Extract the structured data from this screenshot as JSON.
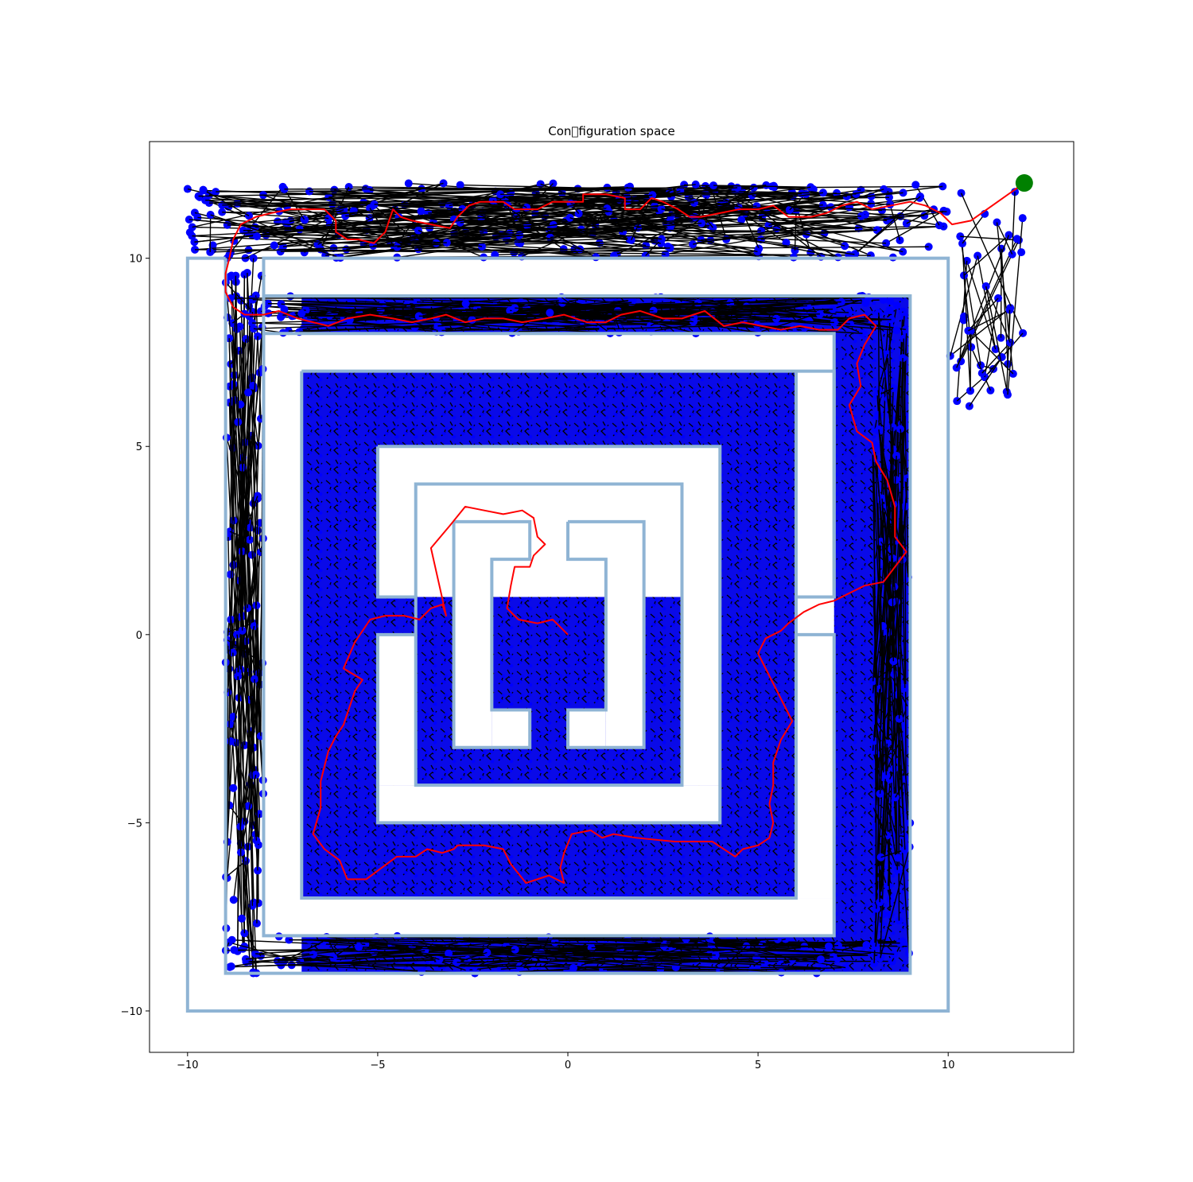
{
  "chart_data": {
    "type": "scatter",
    "title": "Con\u0000figuration space",
    "xlabel": "",
    "ylabel": "",
    "xlim": [
      -11.0,
      13.3
    ],
    "ylim": [
      -11.1,
      13.1
    ],
    "xticks": [
      -10,
      -5,
      0,
      5,
      10
    ],
    "yticks": [
      -10,
      -5,
      0,
      5,
      10
    ],
    "xtick_labels": [
      "−10",
      "−5",
      "0",
      "5",
      "10"
    ],
    "ytick_labels": [
      "−10",
      "−5",
      "0",
      "5",
      "10"
    ],
    "grid": false,
    "legend": "none",
    "colors": {
      "walls": "#8fb4d4",
      "nodes": "#0000ff",
      "edges": "#000000",
      "path": "#ff0000",
      "goal": "#008000"
    },
    "start": [
      0,
      0
    ],
    "goal": [
      12,
      12
    ],
    "walls": [
      [
        [
          -9,
          10
        ],
        [
          -10,
          10
        ],
        [
          -10,
          -10
        ],
        [
          10,
          -10
        ],
        [
          10,
          10
        ],
        [
          -8,
          10
        ],
        [
          -8,
          -8
        ],
        [
          7,
          -8
        ],
        [
          7,
          0
        ],
        [
          6,
          0
        ],
        [
          6,
          1
        ],
        [
          7,
          1
        ],
        [
          7,
          8
        ],
        [
          -8,
          8
        ]
      ],
      [
        [
          -9,
          10
        ],
        [
          -9,
          -9
        ],
        [
          9,
          -9
        ],
        [
          9,
          9
        ],
        [
          -8,
          9
        ]
      ],
      [
        [
          -7,
          7
        ],
        [
          7,
          7
        ],
        [
          7,
          1
        ],
        [
          6,
          1
        ],
        [
          6,
          7
        ]
      ],
      [
        [
          -7,
          7
        ],
        [
          -7,
          -7
        ],
        [
          6,
          -7
        ],
        [
          6,
          0
        ]
      ],
      [
        [
          -5,
          5
        ],
        [
          4,
          5
        ],
        [
          4,
          -5
        ],
        [
          -5,
          -5
        ],
        [
          -5,
          0
        ],
        [
          -4,
          0
        ],
        [
          -4,
          1
        ],
        [
          -5,
          1
        ],
        [
          -5,
          5
        ]
      ],
      [
        [
          -4,
          1
        ],
        [
          -4,
          4
        ],
        [
          3,
          4
        ],
        [
          3,
          -4
        ],
        [
          -4,
          -4
        ],
        [
          -4,
          0
        ]
      ],
      [
        [
          -3,
          3
        ],
        [
          -1,
          3
        ],
        [
          -1,
          2
        ],
        [
          -2,
          2
        ],
        [
          -2,
          -2
        ],
        [
          -1,
          -2
        ],
        [
          -1,
          -3
        ],
        [
          -3,
          -3
        ],
        [
          -3,
          3
        ]
      ],
      [
        [
          0,
          3
        ],
        [
          2,
          3
        ],
        [
          2,
          -3
        ],
        [
          0,
          -3
        ],
        [
          0,
          -2
        ],
        [
          1,
          -2
        ],
        [
          1,
          2
        ],
        [
          0,
          2
        ],
        [
          0,
          3
        ]
      ]
    ],
    "explored_regions": [
      [
        -7,
        9,
        -9,
        9
      ],
      [
        -9,
        -7,
        -9,
        10
      ],
      [
        -10,
        10,
        10,
        12
      ],
      [
        10,
        12,
        6,
        12
      ]
    ],
    "wall_exclusion": [
      [
        [
          -10,
          -9,
          -10,
          10
        ],
        [
          9,
          10,
          -10,
          10
        ],
        [
          -10,
          10,
          -10,
          -9
        ],
        [
          -8,
          -7,
          -8,
          8
        ],
        [
          -8,
          7,
          -8,
          -7
        ],
        [
          -8,
          7,
          7,
          8
        ],
        [
          -10,
          10,
          -11.1,
          -10
        ],
        [
          10,
          13.3,
          -11.1,
          6
        ],
        [
          -11.0,
          -10,
          -11.1,
          13.1
        ]
      ],
      [
        [
          -5,
          4,
          -5,
          5
        ]
      ],
      [
        [
          -3,
          2,
          -3,
          3
        ]
      ]
    ],
    "inner_blocks": [
      [
        -7,
        6,
        -7,
        7
      ],
      [
        -4,
        3,
        -4,
        4
      ],
      [
        -2,
        1,
        -2,
        2
      ]
    ],
    "solution_path": [
      [
        12,
        12
      ],
      [
        11.3,
        11.5
      ],
      [
        10.6,
        11.0
      ],
      [
        10.1,
        10.9
      ],
      [
        9.8,
        11.2
      ],
      [
        9.4,
        11.4
      ],
      [
        9.0,
        11.5
      ],
      [
        8.5,
        11.4
      ],
      [
        8.0,
        11.3
      ],
      [
        7.6,
        11.5
      ],
      [
        7.2,
        11.4
      ],
      [
        6.8,
        11.2
      ],
      [
        6.4,
        11.1
      ],
      [
        5.8,
        11.1
      ],
      [
        5.4,
        11.4
      ],
      [
        5.0,
        11.3
      ],
      [
        4.5,
        11.3
      ],
      [
        4.0,
        11.2
      ],
      [
        3.5,
        11.1
      ],
      [
        3.2,
        11.1
      ],
      [
        2.9,
        11.3
      ],
      [
        2.5,
        11.5
      ],
      [
        2.2,
        11.6
      ],
      [
        1.9,
        11.3
      ],
      [
        1.5,
        11.3
      ],
      [
        1.5,
        11.6
      ],
      [
        1.0,
        11.7
      ],
      [
        0.4,
        11.7
      ],
      [
        0.4,
        11.5
      ],
      [
        0.0,
        11.5
      ],
      [
        -0.4,
        11.5
      ],
      [
        -0.8,
        11.3
      ],
      [
        -1.1,
        11.3
      ],
      [
        -1.4,
        11.3
      ],
      [
        -1.7,
        11.5
      ],
      [
        -2.3,
        11.5
      ],
      [
        -2.6,
        11.4
      ],
      [
        -2.9,
        11.1
      ],
      [
        -3.1,
        10.8
      ],
      [
        -3.6,
        10.9
      ],
      [
        -4.1,
        11.0
      ],
      [
        -4.4,
        11.1
      ],
      [
        -4.6,
        11.3
      ],
      [
        -4.8,
        10.7
      ],
      [
        -5.1,
        10.4
      ],
      [
        -5.5,
        10.5
      ],
      [
        -5.8,
        10.5
      ],
      [
        -6.1,
        10.7
      ],
      [
        -6.1,
        11.0
      ],
      [
        -6.4,
        11.3
      ],
      [
        -6.8,
        11.3
      ],
      [
        -7.3,
        11.3
      ],
      [
        -7.8,
        11.2
      ],
      [
        -8.2,
        11.1
      ],
      [
        -8.6,
        10.9
      ],
      [
        -8.8,
        10.5
      ],
      [
        -8.9,
        10.0
      ],
      [
        -9.0,
        9.6
      ],
      [
        -9.0,
        9.1
      ],
      [
        -8.8,
        8.7
      ],
      [
        -8.5,
        8.5
      ],
      [
        -8.0,
        8.5
      ],
      [
        -7.6,
        8.6
      ],
      [
        -7.1,
        8.4
      ],
      [
        -6.7,
        8.3
      ],
      [
        -6.3,
        8.2
      ],
      [
        -5.8,
        8.4
      ],
      [
        -5.2,
        8.5
      ],
      [
        -4.6,
        8.4
      ],
      [
        -4.1,
        8.3
      ],
      [
        -3.6,
        8.4
      ],
      [
        -3.2,
        8.5
      ],
      [
        -2.7,
        8.3
      ],
      [
        -2.2,
        8.4
      ],
      [
        -1.7,
        8.4
      ],
      [
        -1.2,
        8.3
      ],
      [
        -0.6,
        8.4
      ],
      [
        -0.1,
        8.5
      ],
      [
        0.5,
        8.3
      ],
      [
        1.0,
        8.3
      ],
      [
        1.4,
        8.5
      ],
      [
        1.9,
        8.6
      ],
      [
        2.5,
        8.4
      ],
      [
        3.0,
        8.4
      ],
      [
        3.6,
        8.6
      ],
      [
        4.1,
        8.2
      ],
      [
        4.6,
        8.3
      ],
      [
        5.1,
        8.2
      ],
      [
        5.6,
        8.1
      ],
      [
        6.1,
        8.2
      ],
      [
        6.6,
        8.1
      ],
      [
        7.1,
        8.1
      ],
      [
        7.4,
        8.4
      ],
      [
        7.8,
        8.5
      ],
      [
        8.1,
        8.2
      ],
      [
        7.8,
        7.7
      ],
      [
        7.6,
        7.2
      ],
      [
        7.7,
        6.6
      ],
      [
        7.4,
        6.1
      ],
      [
        7.6,
        5.4
      ],
      [
        8.0,
        5.1
      ],
      [
        8.1,
        4.6
      ],
      [
        8.4,
        4.1
      ],
      [
        8.6,
        3.4
      ],
      [
        8.6,
        2.6
      ],
      [
        8.9,
        2.2
      ],
      [
        8.6,
        1.8
      ],
      [
        8.3,
        1.4
      ],
      [
        7.8,
        1.3
      ],
      [
        7.4,
        1.1
      ],
      [
        7.0,
        0.9
      ],
      [
        6.6,
        0.8
      ],
      [
        6.2,
        0.6
      ],
      [
        5.8,
        0.3
      ],
      [
        5.6,
        0.1
      ],
      [
        5.2,
        -0.1
      ],
      [
        5.0,
        -0.5
      ],
      [
        5.2,
        -0.9
      ],
      [
        5.5,
        -1.5
      ],
      [
        5.7,
        -1.9
      ],
      [
        5.9,
        -2.3
      ],
      [
        5.6,
        -2.8
      ],
      [
        5.4,
        -3.4
      ],
      [
        5.4,
        -4.0
      ],
      [
        5.3,
        -4.5
      ],
      [
        5.4,
        -5.0
      ],
      [
        5.3,
        -5.4
      ],
      [
        5.0,
        -5.6
      ],
      [
        4.6,
        -5.7
      ],
      [
        4.4,
        -5.9
      ],
      [
        3.8,
        -5.5
      ],
      [
        2.8,
        -5.5
      ],
      [
        1.8,
        -5.4
      ],
      [
        1.2,
        -5.3
      ],
      [
        0.9,
        -5.4
      ],
      [
        0.6,
        -5.2
      ],
      [
        0.1,
        -5.3
      ],
      [
        -0.1,
        -5.8
      ],
      [
        -0.2,
        -6.2
      ],
      [
        -0.1,
        -6.6
      ],
      [
        -0.5,
        -6.4
      ],
      [
        -1.1,
        -6.6
      ],
      [
        -1.5,
        -6.1
      ],
      [
        -1.7,
        -5.7
      ],
      [
        -2.2,
        -5.6
      ],
      [
        -2.9,
        -5.6
      ],
      [
        -3.0,
        -5.7
      ],
      [
        -3.3,
        -5.8
      ],
      [
        -3.7,
        -5.7
      ],
      [
        -4.0,
        -5.9
      ],
      [
        -4.5,
        -5.9
      ],
      [
        -5.3,
        -6.5
      ],
      [
        -5.8,
        -6.5
      ],
      [
        -6.0,
        -6.0
      ],
      [
        -6.4,
        -5.7
      ],
      [
        -6.7,
        -5.3
      ],
      [
        -6.5,
        -4.6
      ],
      [
        -6.5,
        -3.9
      ],
      [
        -6.3,
        -3.1
      ],
      [
        -6.1,
        -2.7
      ],
      [
        -5.9,
        -2.4
      ],
      [
        -5.6,
        -1.5
      ],
      [
        -5.4,
        -1.2
      ],
      [
        -5.9,
        -0.9
      ],
      [
        -5.6,
        -0.2
      ],
      [
        -5.4,
        0.1
      ],
      [
        -5.2,
        0.4
      ],
      [
        -4.8,
        0.5
      ],
      [
        -4.3,
        0.5
      ],
      [
        -3.9,
        0.4
      ],
      [
        -3.6,
        0.7
      ],
      [
        -3.3,
        0.8
      ],
      [
        -3.2,
        0.5
      ],
      [
        -3.4,
        1.4
      ],
      [
        -3.6,
        2.3
      ],
      [
        -3.1,
        2.9
      ],
      [
        -2.7,
        3.4
      ],
      [
        -2.2,
        3.3
      ],
      [
        -1.7,
        3.2
      ],
      [
        -1.2,
        3.3
      ],
      [
        -0.9,
        3.1
      ],
      [
        -0.8,
        2.6
      ],
      [
        -0.6,
        2.4
      ],
      [
        -0.9,
        2.1
      ],
      [
        -1.0,
        1.8
      ],
      [
        -1.4,
        1.8
      ],
      [
        -1.5,
        1.3
      ],
      [
        -1.6,
        0.7
      ],
      [
        -1.3,
        0.4
      ],
      [
        -0.8,
        0.3
      ],
      [
        -0.4,
        0.4
      ],
      [
        -0.2,
        0.2
      ],
      [
        0.0,
        0.0
      ]
    ]
  }
}
